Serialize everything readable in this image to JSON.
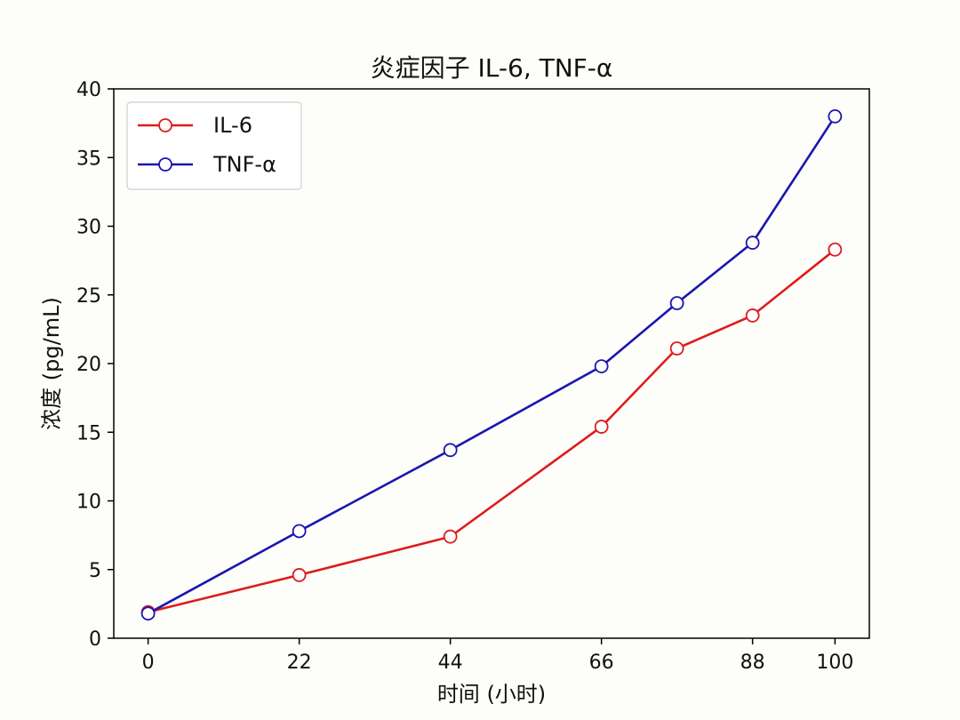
{
  "chart_data": {
    "type": "line",
    "title": "炎症因子 IL-6, TNF-α",
    "xlabel": "时间 (小时)",
    "ylabel": "浓度 (pg/mL)",
    "xlim": [
      -5,
      105
    ],
    "ylim": [
      0,
      40
    ],
    "xticks": [
      0,
      22,
      44,
      66,
      88,
      100
    ],
    "yticks": [
      0,
      5,
      10,
      15,
      20,
      25,
      30,
      35,
      40
    ],
    "grid": false,
    "legend_position": "top-left",
    "series": [
      {
        "name": "IL-6",
        "color": "#dd1c1c",
        "marker": "open-circle",
        "x": [
          0,
          22,
          44,
          66,
          77,
          88,
          100
        ],
        "y": [
          1.9,
          4.6,
          7.4,
          15.4,
          21.1,
          23.5,
          28.3
        ]
      },
      {
        "name": "TNF-α",
        "color": "#1a16b0",
        "marker": "open-circle",
        "x": [
          0,
          22,
          44,
          66,
          77,
          88,
          100
        ],
        "y": [
          1.8,
          7.8,
          13.7,
          19.8,
          24.4,
          28.8,
          38.0
        ]
      }
    ]
  }
}
